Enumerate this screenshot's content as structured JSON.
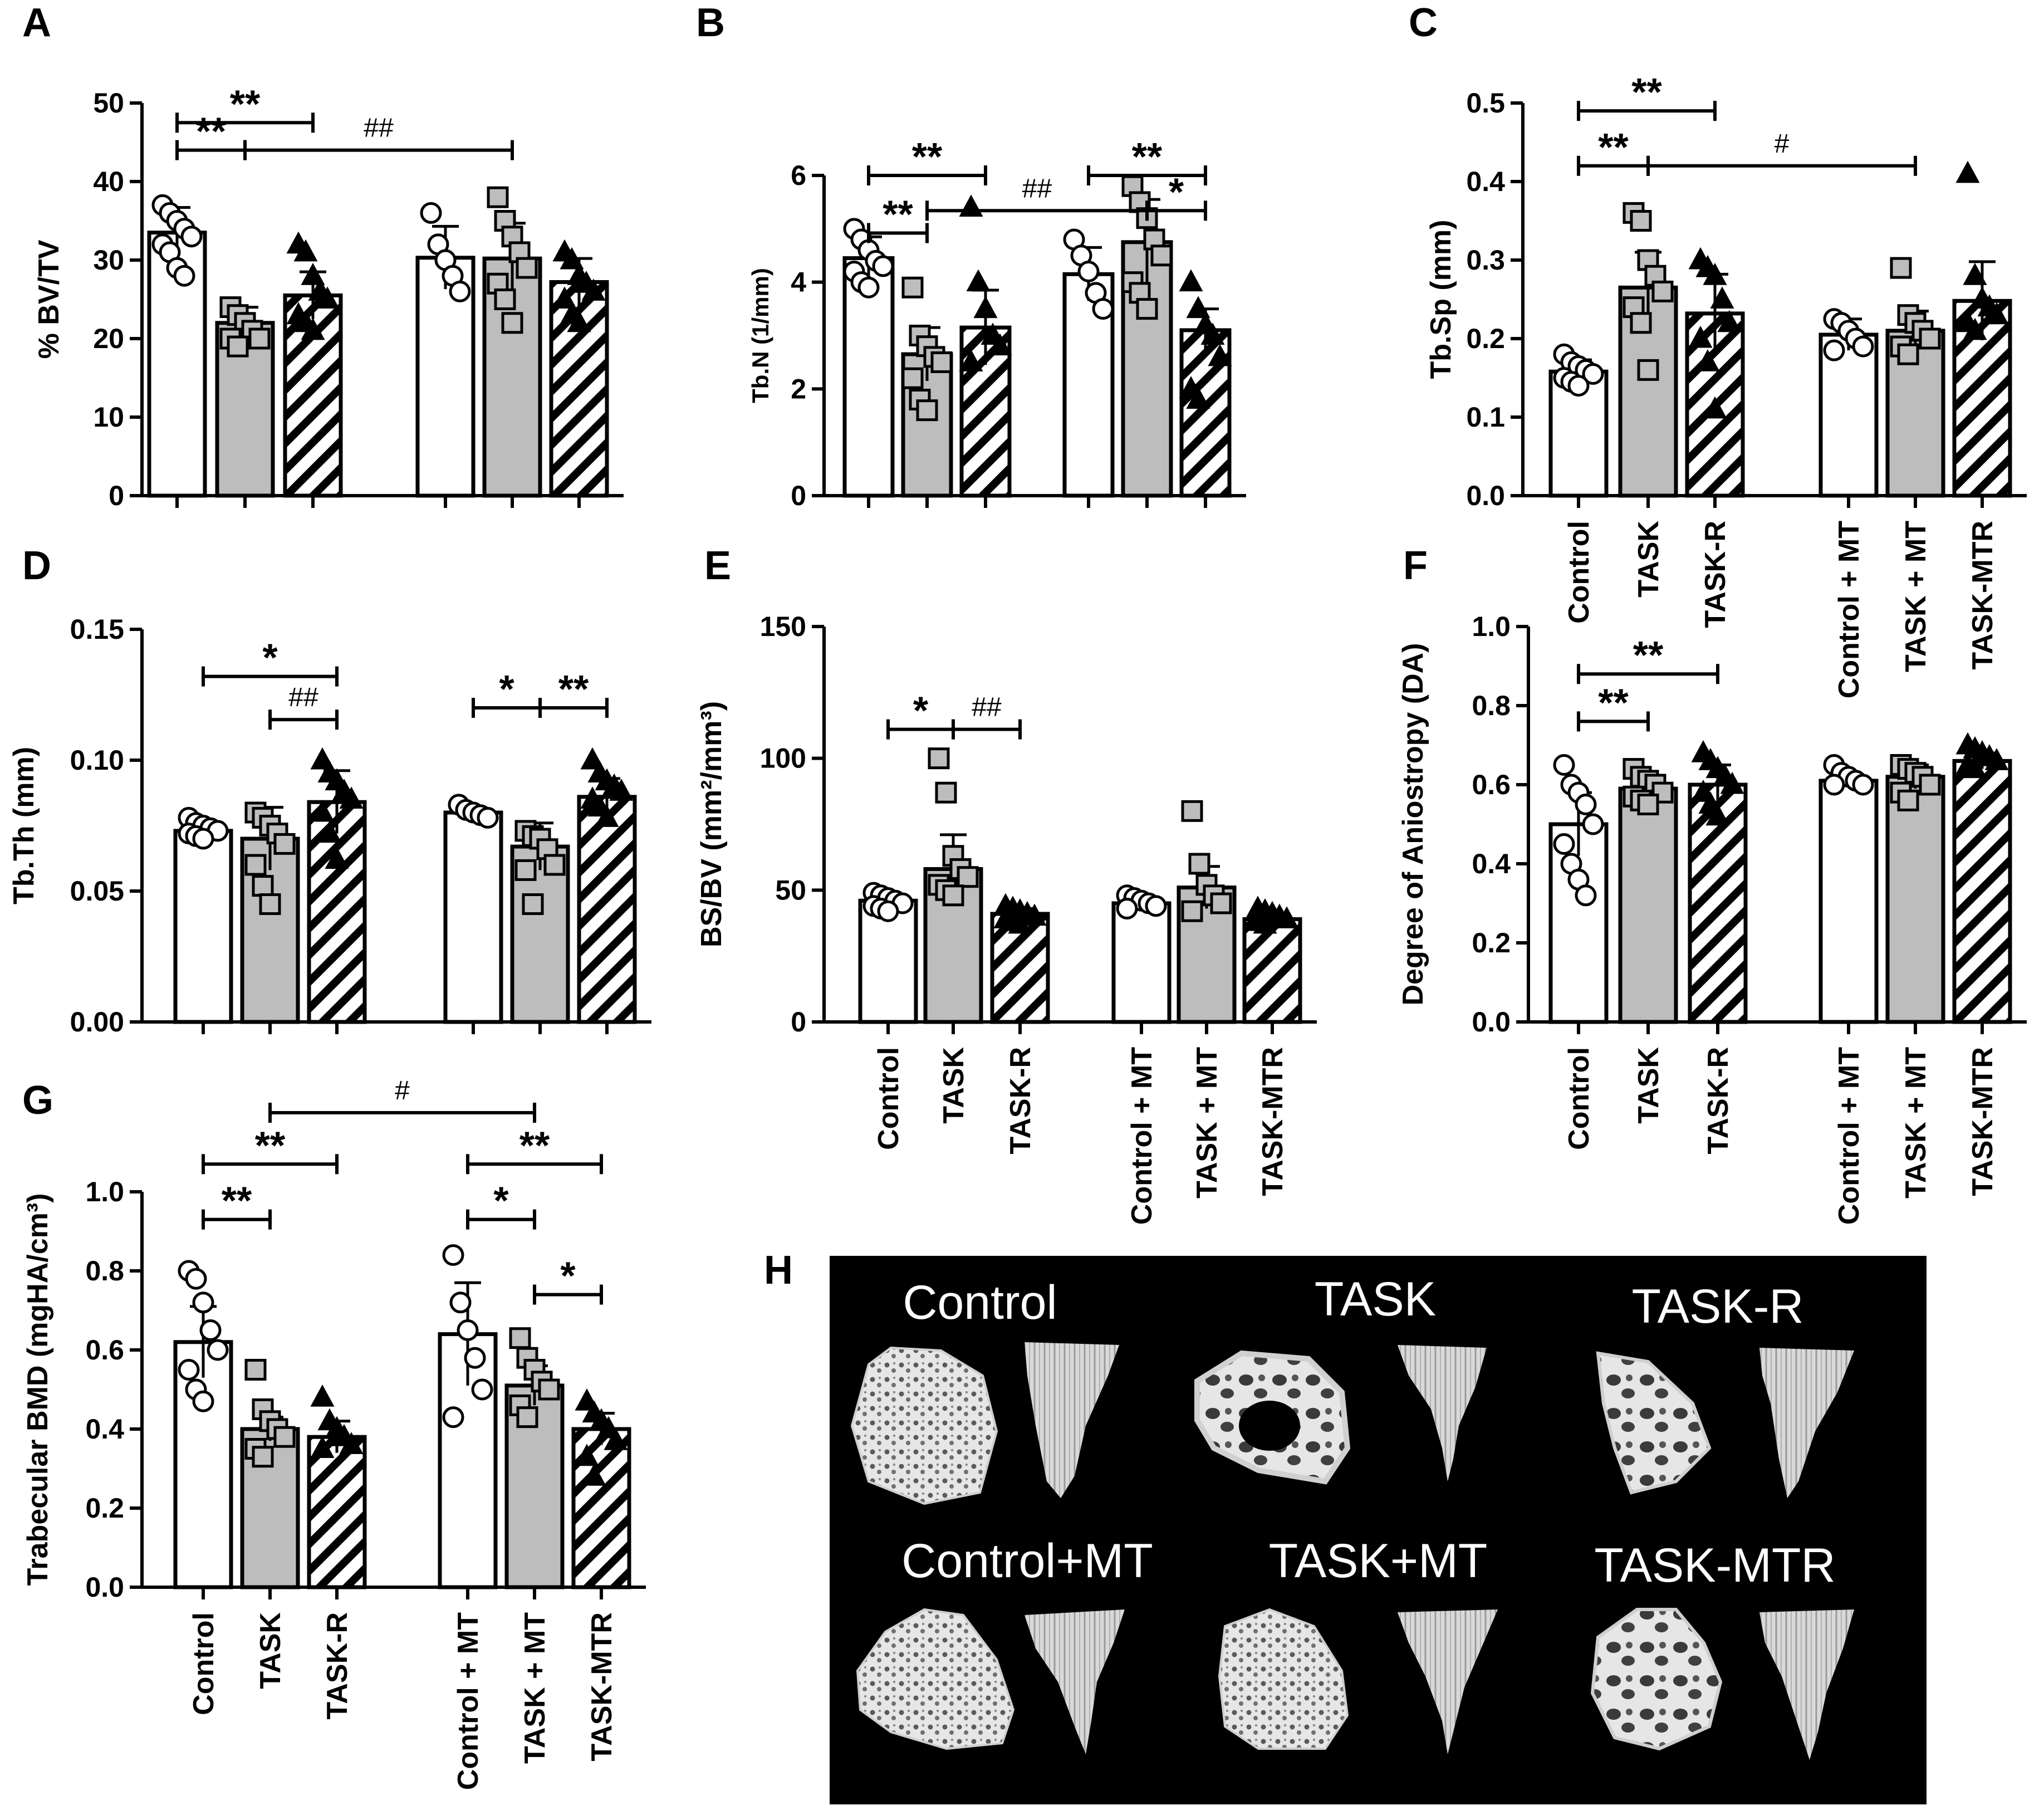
{
  "figure": {
    "groups": [
      "Control",
      "TASK",
      "TASK-R",
      "Control + MT",
      "TASK + MT",
      "TASK-MTR"
    ],
    "colors": {
      "open": "#ffffff",
      "gray": "#bdbdbd",
      "stroke": "#000000",
      "ct_bg": "#000000",
      "bone": "#e8e8e8"
    }
  },
  "chart_data": [
    {
      "panel": "A",
      "type": "bar",
      "ylabel": "% BV/TV",
      "ylim": [
        0,
        50
      ],
      "yticks": [
        "0",
        "10",
        "20",
        "30",
        "40",
        "50"
      ],
      "categories": [
        "Control",
        "TASK",
        "TASK-R",
        "Control + MT",
        "TASK + MT",
        "TASK-MTR"
      ],
      "show_xlabels": false,
      "values": [
        33.5,
        22,
        25.5,
        30.3,
        30.2,
        27.2
      ],
      "errors": [
        3.2,
        2.0,
        3.0,
        4.0,
        4.5,
        3.0
      ],
      "points": [
        [
          37,
          36,
          35,
          34,
          33,
          32,
          31,
          29,
          28
        ],
        [
          24,
          23,
          22,
          21,
          20,
          20,
          19
        ],
        [
          32,
          31,
          28,
          26,
          25,
          23,
          22,
          21
        ],
        [
          36,
          32,
          30,
          28,
          26
        ],
        [
          38,
          35,
          33,
          31,
          29,
          27,
          25,
          22
        ],
        [
          31,
          30,
          28,
          27,
          26,
          25,
          23,
          22
        ]
      ],
      "brackets": [
        {
          "from": 0,
          "to": 2,
          "label": "**",
          "level": 0.95,
          "sym": "star"
        },
        {
          "from": 0,
          "to": 1,
          "label": "**",
          "level": 0.88,
          "sym": "star"
        },
        {
          "from": 1,
          "to": 4,
          "label": "##",
          "level": 0.88,
          "sym": "hash"
        }
      ]
    },
    {
      "panel": "B",
      "type": "bar",
      "ylabel": "Tb.N (1/mm)",
      "ylim": [
        0,
        6
      ],
      "yticks": [
        "0",
        "2",
        "4",
        "6"
      ],
      "categories": [
        "Control",
        "TASK",
        "TASK-R",
        "Control + MT",
        "TASK + MT",
        "TASK-MTR"
      ],
      "show_xlabels": false,
      "values": [
        4.45,
        2.65,
        3.15,
        4.15,
        4.75,
        3.1
      ],
      "errors": [
        0.4,
        0.5,
        0.7,
        0.5,
        0.8,
        0.4
      ],
      "points": [
        [
          5.0,
          4.8,
          4.6,
          4.4,
          4.3,
          4.2,
          4.0,
          3.9
        ],
        [
          3.9,
          3.0,
          2.8,
          2.6,
          2.5,
          2.2,
          1.8,
          1.6
        ],
        [
          5.4,
          4.0,
          3.5,
          3.0,
          2.8,
          2.5
        ],
        [
          4.8,
          4.5,
          4.2,
          3.8,
          3.5
        ],
        [
          5.8,
          5.5,
          5.2,
          4.8,
          4.5,
          4.0,
          3.8,
          3.5
        ],
        [
          4.0,
          3.5,
          3.2,
          3.0,
          2.6,
          2.0,
          1.8
        ]
      ],
      "brackets": [
        {
          "from": 0,
          "to": 2,
          "label": "**",
          "level": 1.0,
          "sym": "star"
        },
        {
          "from": 3,
          "to": 5,
          "label": "**",
          "level": 1.0,
          "sym": "star"
        },
        {
          "from": 0,
          "to": 1,
          "label": "**",
          "level": 0.82,
          "sym": "star"
        },
        {
          "from": 1,
          "to": 4,
          "label": "##",
          "level": 0.89,
          "sym": "hash"
        },
        {
          "from": 4,
          "to": 5,
          "label": "*",
          "level": 0.89,
          "sym": "star"
        }
      ]
    },
    {
      "panel": "C",
      "type": "bar",
      "ylabel": "Tb.Sp (mm)",
      "ylim": [
        0,
        0.5
      ],
      "yticks": [
        "0.0",
        "0.1",
        "0.2",
        "0.3",
        "0.4",
        "0.5"
      ],
      "categories": [
        "Control",
        "TASK",
        "TASK-R",
        "Control + MT",
        "TASK + MT",
        "TASK-MTR"
      ],
      "show_xlabels": true,
      "values": [
        0.158,
        0.265,
        0.232,
        0.205,
        0.21,
        0.248
      ],
      "errors": [
        0.015,
        0.045,
        0.05,
        0.02,
        0.025,
        0.05
      ],
      "points": [
        [
          0.18,
          0.17,
          0.165,
          0.16,
          0.155,
          0.15,
          0.145,
          0.14
        ],
        [
          0.36,
          0.35,
          0.3,
          0.28,
          0.26,
          0.24,
          0.22,
          0.16
        ],
        [
          0.3,
          0.29,
          0.28,
          0.25,
          0.22,
          0.2,
          0.17,
          0.11
        ],
        [
          0.225,
          0.22,
          0.21,
          0.2,
          0.19,
          0.185
        ],
        [
          0.29,
          0.23,
          0.22,
          0.21,
          0.2,
          0.19,
          0.18
        ],
        [
          0.41,
          0.28,
          0.25,
          0.24,
          0.23,
          0.22,
          0.21
        ]
      ],
      "brackets": [
        {
          "from": 0,
          "to": 2,
          "label": "**",
          "level": 0.98,
          "sym": "star"
        },
        {
          "from": 0,
          "to": 1,
          "label": "**",
          "level": 0.84,
          "sym": "star"
        },
        {
          "from": 1,
          "to": 4,
          "label": "#",
          "level": 0.84,
          "sym": "hash"
        }
      ]
    },
    {
      "panel": "D",
      "type": "bar",
      "ylabel": "Tb.Th (mm)",
      "ylim": [
        0,
        0.15
      ],
      "yticks": [
        "0.00",
        "0.05",
        "0.10",
        "0.15"
      ],
      "categories": [
        "Control",
        "TASK",
        "TASK-R",
        "Control + MT",
        "TASK + MT",
        "TASK-MTR"
      ],
      "show_xlabels": false,
      "values": [
        0.073,
        0.07,
        0.084,
        0.08,
        0.067,
        0.086
      ],
      "errors": [
        0.003,
        0.012,
        0.012,
        0.002,
        0.009,
        0.007
      ],
      "points": [
        [
          0.078,
          0.076,
          0.075,
          0.074,
          0.073,
          0.072,
          0.071,
          0.07
        ],
        [
          0.08,
          0.078,
          0.075,
          0.072,
          0.068,
          0.06,
          0.052,
          0.045
        ],
        [
          0.1,
          0.095,
          0.092,
          0.088,
          0.085,
          0.08,
          0.072,
          0.062
        ],
        [
          0.083,
          0.081,
          0.08,
          0.079,
          0.078
        ],
        [
          0.073,
          0.071,
          0.07,
          0.066,
          0.06,
          0.058,
          0.045
        ],
        [
          0.1,
          0.095,
          0.092,
          0.09,
          0.088,
          0.085,
          0.082,
          0.078
        ]
      ],
      "brackets": [
        {
          "from": 0,
          "to": 2,
          "label": "*",
          "level": 0.88,
          "sym": "star"
        },
        {
          "from": 1,
          "to": 2,
          "label": "##",
          "level": 0.77,
          "sym": "hash"
        },
        {
          "from": 3,
          "to": 4,
          "label": "*",
          "level": 0.8,
          "sym": "star"
        },
        {
          "from": 4,
          "to": 5,
          "label": "**",
          "level": 0.8,
          "sym": "star"
        }
      ]
    },
    {
      "panel": "E",
      "type": "bar",
      "ylabel": "BS/BV (mm²/mm³)",
      "ylim": [
        0,
        150
      ],
      "yticks": [
        "0",
        "50",
        "100",
        "150"
      ],
      "categories": [
        "Control",
        "TASK",
        "TASK-R",
        "Control + MT",
        "TASK + MT",
        "TASK-MTR"
      ],
      "show_xlabels": true,
      "values": [
        46,
        58,
        41,
        45,
        51,
        39
      ],
      "errors": [
        2,
        13,
        2,
        2,
        8,
        2
      ],
      "points": [
        [
          49,
          48,
          47,
          46,
          45,
          44,
          43,
          42
        ],
        [
          100,
          87,
          63,
          58,
          55,
          52,
          50,
          48
        ],
        [
          44,
          43,
          42,
          41,
          40,
          39,
          38,
          37
        ],
        [
          48,
          47,
          46,
          45,
          44,
          43
        ],
        [
          80,
          60,
          52,
          48,
          45,
          42
        ],
        [
          43,
          42,
          41,
          40,
          39,
          38,
          37
        ]
      ],
      "brackets": [
        {
          "from": 0,
          "to": 1,
          "label": "*",
          "level": 0.74,
          "sym": "star"
        },
        {
          "from": 1,
          "to": 2,
          "label": "##",
          "level": 0.74,
          "sym": "hash"
        }
      ]
    },
    {
      "panel": "F",
      "type": "bar",
      "ylabel": "Degree of Aniostropy (DA)",
      "ylim": [
        0,
        1.0
      ],
      "yticks": [
        "0.0",
        "0.2",
        "0.4",
        "0.6",
        "0.8",
        "1.0"
      ],
      "categories": [
        "Control",
        "TASK",
        "TASK-R",
        "Control + MT",
        "TASK + MT",
        "TASK-MTR"
      ],
      "show_xlabels": true,
      "values": [
        0.5,
        0.59,
        0.6,
        0.61,
        0.62,
        0.66
      ],
      "errors": [
        0.08,
        0.03,
        0.05,
        0.015,
        0.03,
        0.02
      ],
      "points": [
        [
          0.65,
          0.6,
          0.58,
          0.55,
          0.5,
          0.45,
          0.4,
          0.36,
          0.32
        ],
        [
          0.64,
          0.62,
          0.61,
          0.6,
          0.58,
          0.57,
          0.56,
          0.55
        ],
        [
          0.68,
          0.66,
          0.64,
          0.62,
          0.6,
          0.58,
          0.55,
          0.52
        ],
        [
          0.65,
          0.63,
          0.62,
          0.61,
          0.6,
          0.6
        ],
        [
          0.65,
          0.64,
          0.63,
          0.62,
          0.6,
          0.58,
          0.56
        ],
        [
          0.7,
          0.69,
          0.68,
          0.67,
          0.66,
          0.65,
          0.64
        ]
      ],
      "brackets": [
        {
          "from": 0,
          "to": 2,
          "label": "**",
          "level": 0.88,
          "sym": "star"
        },
        {
          "from": 0,
          "to": 1,
          "label": "**",
          "level": 0.76,
          "sym": "star"
        }
      ]
    },
    {
      "panel": "G",
      "type": "bar",
      "ylabel": "Trabecular BMD (mgHA/cm³)",
      "ylim": [
        0,
        1.0
      ],
      "yticks": [
        "0.0",
        "0.2",
        "0.4",
        "0.6",
        "0.8",
        "1.0"
      ],
      "categories": [
        "Control",
        "TASK",
        "TASK-R",
        "Control + MT",
        "TASK + MT",
        "TASK-MTR"
      ],
      "show_xlabels": true,
      "values": [
        0.62,
        0.4,
        0.38,
        0.64,
        0.51,
        0.4
      ],
      "errors": [
        0.09,
        0.03,
        0.04,
        0.13,
        0.05,
        0.04
      ],
      "points": [
        [
          0.8,
          0.78,
          0.72,
          0.65,
          0.6,
          0.55,
          0.5,
          0.47
        ],
        [
          0.55,
          0.45,
          0.42,
          0.4,
          0.38,
          0.35,
          0.33
        ],
        [
          0.48,
          0.42,
          0.4,
          0.38,
          0.36,
          0.35
        ],
        [
          0.84,
          0.72,
          0.65,
          0.58,
          0.5,
          0.43
        ],
        [
          0.63,
          0.58,
          0.55,
          0.52,
          0.5,
          0.46,
          0.43
        ],
        [
          0.47,
          0.44,
          0.42,
          0.4,
          0.37,
          0.33,
          0.28
        ]
      ],
      "brackets": [
        {
          "from": 1,
          "to": 4,
          "label": "#",
          "level": 1.2,
          "sym": "hash"
        },
        {
          "from": 0,
          "to": 2,
          "label": "**",
          "level": 1.07,
          "sym": "star"
        },
        {
          "from": 3,
          "to": 5,
          "label": "**",
          "level": 1.07,
          "sym": "star"
        },
        {
          "from": 0,
          "to": 1,
          "label": "**",
          "level": 0.93,
          "sym": "star"
        },
        {
          "from": 3,
          "to": 4,
          "label": "*",
          "level": 0.93,
          "sym": "star"
        },
        {
          "from": 4,
          "to": 5,
          "label": "*",
          "level": 0.74,
          "sym": "star"
        }
      ]
    }
  ],
  "panel_h": {
    "letter": "H",
    "labels": [
      "Control",
      "TASK",
      "TASK-R",
      "Control+MT",
      "TASK+MT",
      "TASK-MTR"
    ]
  }
}
